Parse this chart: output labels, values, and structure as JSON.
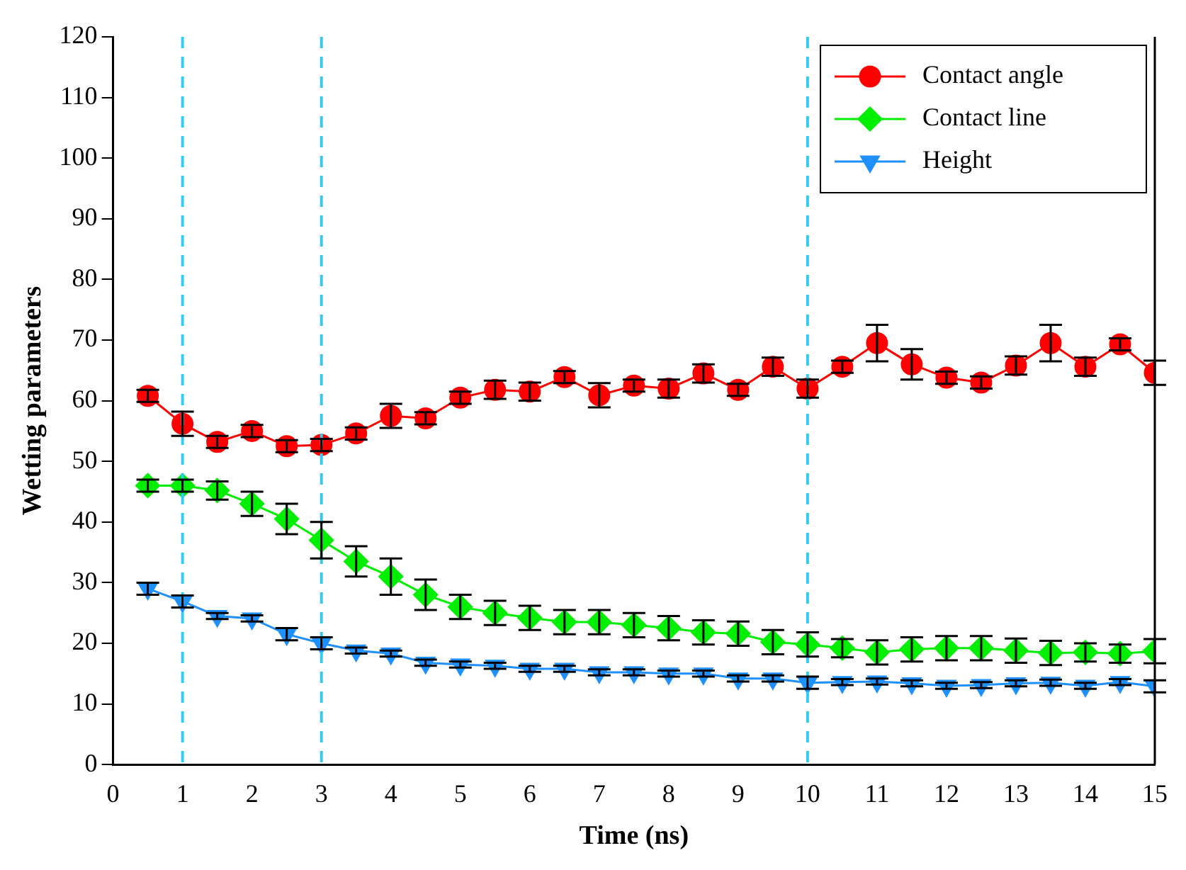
{
  "chart_data": {
    "type": "line",
    "xlabel": "Time (ns)",
    "ylabel": "Wetting parameters",
    "x": [
      0.5,
      1,
      1.5,
      2,
      2.5,
      3,
      3.5,
      4,
      4.5,
      5,
      5.5,
      6,
      6.5,
      7,
      7.5,
      8,
      8.5,
      9,
      9.5,
      10,
      10.5,
      11,
      11.5,
      12,
      12.5,
      13,
      13.5,
      14,
      14.5,
      15
    ],
    "series": [
      {
        "name": "Contact angle",
        "color": "#ff0000",
        "marker": "circle",
        "values": [
          60.8,
          56.2,
          53.2,
          55,
          52.5,
          52.7,
          54.6,
          57.5,
          57.1,
          60.5,
          61.8,
          61.5,
          63.9,
          60.9,
          62.5,
          62,
          64.5,
          61.8,
          65.6,
          62,
          65.6,
          69.5,
          66,
          63.8,
          63,
          65.8,
          69.5,
          65.6,
          69.3,
          64.6
        ],
        "errors": [
          1,
          2,
          1,
          1,
          1,
          1,
          1,
          2,
          1,
          1,
          1.5,
          1.5,
          1,
          2,
          1,
          1.5,
          1.5,
          1,
          1.5,
          1.5,
          1,
          3,
          2.5,
          1,
          1,
          1.5,
          3,
          1.5,
          1,
          2
        ]
      },
      {
        "name": "Contact line",
        "color": "#00ee00",
        "marker": "diamond",
        "values": [
          46,
          46,
          45.2,
          43,
          40.5,
          37,
          33.5,
          31,
          28,
          26,
          25,
          24.2,
          23.5,
          23.5,
          23,
          22.5,
          21.8,
          21.6,
          20.2,
          19.8,
          19.2,
          18.5,
          19,
          19.2,
          19.2,
          18.8,
          18.4,
          18.5,
          18.3,
          18.7
        ],
        "errors": [
          1,
          1,
          1.5,
          2,
          2.5,
          3,
          2.5,
          3,
          2.5,
          2,
          2,
          2,
          2,
          2,
          2,
          2,
          2,
          2,
          2,
          2,
          1.5,
          2,
          2,
          2,
          2,
          2,
          2,
          1.5,
          1.5,
          2
        ]
      },
      {
        "name": "Height",
        "color": "#1e90ff",
        "marker": "triangle",
        "values": [
          29,
          26.9,
          24.5,
          24.1,
          21.5,
          20,
          18.8,
          18.3,
          16.8,
          16.5,
          16.3,
          15.8,
          15.8,
          15.2,
          15.2,
          15,
          15,
          14.2,
          14.2,
          13.5,
          13.6,
          13.7,
          13.4,
          13,
          13.1,
          13.4,
          13.5,
          13,
          13.6,
          12.9
        ],
        "errors": [
          1,
          1,
          0.5,
          0.5,
          1,
          1,
          0.5,
          0.5,
          0.5,
          0.5,
          0.5,
          0.5,
          0.5,
          0.5,
          0.5,
          0.5,
          0.5,
          0.5,
          0.5,
          1,
          0.5,
          0.5,
          0.5,
          0.5,
          0.5,
          0.5,
          0.5,
          0.5,
          0.5,
          1
        ]
      }
    ],
    "xlim": [
      0,
      15
    ],
    "xticks": [
      0,
      1,
      2,
      3,
      4,
      5,
      6,
      7,
      8,
      9,
      10,
      11,
      12,
      13,
      14,
      15
    ],
    "ylim": [
      0,
      120
    ],
    "yticks": [
      0,
      10,
      20,
      30,
      40,
      50,
      60,
      70,
      80,
      90,
      100,
      110,
      120
    ],
    "ref_lines": [
      {
        "axis": "x",
        "value": 1,
        "color": "#33ccee",
        "line_style": "dashed"
      },
      {
        "axis": "x",
        "value": 3,
        "color": "#33ccee",
        "line_style": "dashed"
      },
      {
        "axis": "x",
        "value": 10,
        "color": "#33ccee",
        "line_style": "dashed"
      }
    ],
    "grid": false,
    "legend": "top right"
  }
}
